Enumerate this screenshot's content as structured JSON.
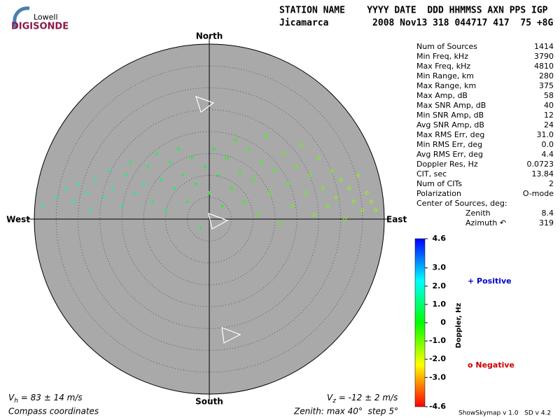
{
  "logo": {
    "top": "Lowell",
    "name": "DIGISONDE"
  },
  "header": {
    "line1": "STATION NAME    YYYY DATE  DDD HHMMSS AXN PPS IGP",
    "line2": "Jicamarca        2008 Nov13 318 044717 417  75 +8G"
  },
  "stats": {
    "labels": [
      "Num of Sources",
      "Min Freq, kHz",
      "Max Freq, kHz",
      "Min Range, km",
      "Max Range, km",
      "Max Amp, dB",
      "Max SNR Amp, dB",
      "Min SNR Amp, dB",
      "Avg SNR Amp, dB",
      "Max RMS Err, deg",
      "Min RMS Err, deg",
      "Avg RMS Err, deg",
      "Doppler Res, Hz",
      "CIT, sec",
      "Num of CITs",
      "Polarization",
      "Center of Sources, deg:",
      "Zenith",
      "Azimuth ↶"
    ],
    "values": [
      "1414",
      "3790",
      "4810",
      "280",
      "375",
      "58",
      "40",
      "12",
      "24",
      "31.0",
      "0.0",
      "4.4",
      "0.0723",
      "13.84",
      "2",
      "O-mode",
      null,
      "8.4",
      "319"
    ]
  },
  "legend": {
    "positive": "+ Positive",
    "negative": "o Negative",
    "positive_color": "#0000cc",
    "negative_color": "#cc0000"
  },
  "footer": {
    "vh": {
      "symbol": "V",
      "sub": "h",
      "text": " = 83 ± 14 m/s"
    },
    "vz": {
      "symbol": "V",
      "sub": "z",
      "text": " = -12 ± 2 m/s"
    },
    "coords": "Compass coordinates",
    "zenith": "Zenith: max 40°  step 5°",
    "version": "ShowSkymap v 1.0   SD v 4.2"
  },
  "chart_data": {
    "type": "scatter",
    "directions": {
      "north": "North",
      "south": "South",
      "west": "West",
      "east": "East"
    },
    "rlim": [
      0,
      40
    ],
    "rticks": [
      5,
      10,
      15,
      20,
      25,
      30,
      35,
      40
    ],
    "colorbar_label": "Doppler, Hz",
    "clim": [
      -4.6,
      4.6
    ],
    "cticks": [
      4.6,
      {
        "value": 3,
        "label": "3.0"
      },
      {
        "value": 2,
        "label": "2.0"
      },
      {
        "value": 1,
        "label": "1.0"
      },
      0,
      {
        "value": -1,
        "label": "-1.0"
      },
      {
        "value": -2,
        "label": "-2.0"
      },
      {
        "value": -3,
        "label": "-3.0"
      },
      -4.6
    ],
    "x": [
      -38,
      -35,
      -33,
      -31,
      -30,
      -28,
      -27,
      -26,
      -24,
      -23,
      -22,
      -20,
      -19,
      -18,
      -17,
      -15,
      -14,
      -13,
      -12,
      -11,
      -10,
      -9,
      -8,
      -7,
      -6,
      -5,
      -4,
      -3,
      -2,
      -1,
      0,
      1,
      2,
      3,
      4,
      5,
      6,
      7,
      8,
      9,
      10,
      11,
      12,
      13,
      14,
      15,
      16,
      17,
      18,
      19,
      20,
      21,
      22,
      23,
      24,
      25,
      26,
      27,
      28,
      29,
      30,
      31,
      32,
      33,
      34,
      35,
      36,
      37,
      38
    ],
    "y": [
      3,
      5,
      7,
      4,
      8,
      6,
      2,
      9,
      5,
      11,
      7,
      3,
      10,
      13,
      6,
      8,
      12,
      4,
      15,
      9,
      2,
      13,
      7,
      16,
      10,
      4,
      14,
      8,
      -2,
      12,
      6,
      16,
      10,
      3,
      14,
      7,
      18,
      11,
      4,
      16,
      9,
      1,
      13,
      19,
      6,
      11,
      -1,
      15,
      8,
      3,
      12,
      17,
      6,
      10,
      1,
      14,
      7,
      3,
      11,
      5,
      9,
      0,
      7,
      4,
      10,
      2,
      6,
      4,
      2
    ],
    "doppler": [
      1.5,
      1.4,
      1.5,
      1.6,
      1.3,
      1.5,
      1.4,
      1.2,
      1.3,
      1.1,
      1.4,
      1.2,
      1.0,
      0.9,
      1.1,
      1.0,
      0.8,
      0.9,
      0.7,
      0.8,
      0.9,
      0.6,
      0.7,
      0.5,
      0.6,
      0.6,
      0.4,
      0.5,
      0.3,
      0.3,
      0.3,
      0.2,
      0.2,
      0.2,
      -0.2,
      -0.2,
      -0.3,
      -0.3,
      -0.3,
      -0.4,
      -0.4,
      -0.5,
      -0.5,
      -0.5,
      -0.6,
      -0.6,
      -0.7,
      -0.7,
      -0.7,
      -0.8,
      -0.8,
      -0.8,
      -0.9,
      -0.9,
      -0.9,
      -1.0,
      -1.0,
      -1.0,
      -1.1,
      -1.1,
      -1.1,
      -1.2,
      -1.2,
      -1.2,
      -1.2,
      -1.3,
      -1.3,
      -1.3,
      -1.3
    ]
  }
}
